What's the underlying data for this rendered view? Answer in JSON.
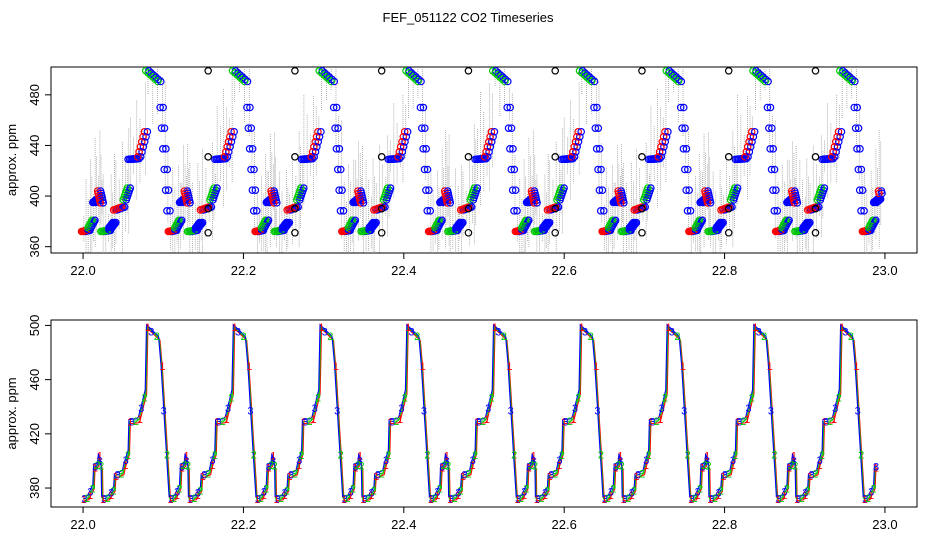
{
  "title": "FEF_051122  CO2 Timeseries",
  "chart_data": [
    {
      "type": "scatter",
      "ylabel": "approx. ppm",
      "xlim": [
        21.96,
        23.04
      ],
      "ylim": [
        355,
        502
      ],
      "xticks": [
        "22.0",
        "22.2",
        "22.4",
        "22.6",
        "22.8",
        "23.0"
      ],
      "xtick_values": [
        22.0,
        22.2,
        22.4,
        22.6,
        22.8,
        23.0
      ],
      "yticks": [
        "360",
        "400",
        "440",
        "480"
      ],
      "ytick_values": [
        360,
        400,
        440,
        480
      ],
      "cycle": {
        "period_days": 0.1082,
        "first_start": 22.0,
        "steps": [
          {
            "dt": 0.0,
            "ppm": 372
          },
          {
            "dt": 0.008,
            "ppm": 375
          },
          {
            "dt": 0.014,
            "ppm": 395
          },
          {
            "dt": 0.02,
            "ppm": 404
          },
          {
            "dt": 0.024,
            "ppm": 372
          },
          {
            "dt": 0.034,
            "ppm": 375
          },
          {
            "dt": 0.04,
            "ppm": 389
          },
          {
            "dt": 0.052,
            "ppm": 397
          },
          {
            "dt": 0.058,
            "ppm": 429
          },
          {
            "dt": 0.07,
            "ppm": 431
          },
          {
            "dt": 0.08,
            "ppm": 499
          },
          {
            "dt": 0.098,
            "ppm": 470
          }
        ],
        "post": [
          {
            "dt": 0.104,
            "ppm": 371
          },
          {
            "dt": 0.104,
            "ppm": 390
          },
          {
            "dt": 0.104,
            "ppm": 431
          },
          {
            "dt": 0.104,
            "ppm": 499
          }
        ]
      },
      "series": [
        {
          "color": "#ff0000",
          "marker": "circle"
        },
        {
          "color": "#00cc00",
          "marker": "circle"
        },
        {
          "color": "#0000ff",
          "marker": "circle"
        },
        {
          "color": "#000000",
          "marker": "circle"
        },
        {
          "color": "#808080",
          "marker": "vertical line"
        }
      ]
    },
    {
      "type": "line",
      "ylabel": "approx. ppm",
      "xlim": [
        21.96,
        23.04
      ],
      "ylim": [
        366,
        504
      ],
      "xticks": [
        "22.0",
        "22.2",
        "22.4",
        "22.6",
        "22.8",
        "23.0"
      ],
      "xtick_values": [
        22.0,
        22.2,
        22.4,
        22.6,
        22.8,
        23.0
      ],
      "yticks": [
        "380",
        "420",
        "460",
        "500"
      ],
      "ytick_values": [
        380,
        420,
        460,
        500
      ],
      "point_labels": [
        "1",
        "2",
        "3"
      ],
      "series": [
        {
          "color": "#ff0000",
          "label": "1"
        },
        {
          "color": "#00cc00",
          "label": "2"
        },
        {
          "color": "#0000ff",
          "label": "3"
        }
      ]
    }
  ],
  "colors": {
    "frame": "#000000",
    "gray": "#808080"
  }
}
